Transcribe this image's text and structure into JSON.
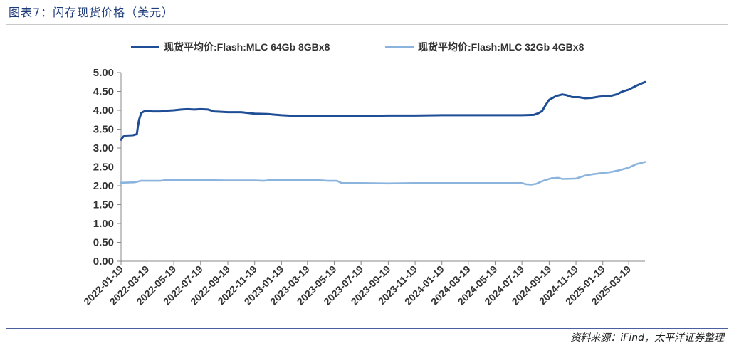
{
  "figure": {
    "title": "图表7：闪存现货价格（美元）",
    "source": "资料来源：iFind，太平洋证券整理"
  },
  "chart_data": {
    "type": "line",
    "title": "",
    "xlabel": "",
    "ylabel": "",
    "ylim": [
      0,
      5
    ],
    "yticks": [
      "0.00",
      "0.50",
      "1.00",
      "1.50",
      "2.00",
      "2.50",
      "3.00",
      "3.50",
      "4.00",
      "4.50",
      "5.00"
    ],
    "xticks": [
      "2022-01-19",
      "2022-03-19",
      "2022-05-19",
      "2022-07-19",
      "2022-09-19",
      "2022-11-19",
      "2023-01-19",
      "2023-03-19",
      "2023-05-19",
      "2023-07-19",
      "2023-09-19",
      "2023-11-19",
      "2024-01-19",
      "2024-03-19",
      "2024-05-19",
      "2024-07-19",
      "2024-09-19",
      "2024-11-19",
      "2025-01-19",
      "2025-03-19"
    ],
    "xrange": [
      "2022-01-19",
      "2025-04-25"
    ],
    "grid": false,
    "legend_position": "top",
    "series": [
      {
        "name": "现货平均价:Flash:MLC 64Gb 8GBx8",
        "color": "#1f4e96",
        "points": [
          [
            "2022-01-19",
            3.22
          ],
          [
            "2022-01-24",
            3.3
          ],
          [
            "2022-01-29",
            3.33
          ],
          [
            "2022-02-15",
            3.34
          ],
          [
            "2022-02-24",
            3.37
          ],
          [
            "2022-02-26",
            3.55
          ],
          [
            "2022-03-01",
            3.75
          ],
          [
            "2022-03-06",
            3.93
          ],
          [
            "2022-03-14",
            3.98
          ],
          [
            "2022-04-01",
            3.97
          ],
          [
            "2022-04-19",
            3.97
          ],
          [
            "2022-05-05",
            3.99
          ],
          [
            "2022-05-19",
            4.0
          ],
          [
            "2022-06-05",
            4.02
          ],
          [
            "2022-06-19",
            4.03
          ],
          [
            "2022-07-05",
            4.02
          ],
          [
            "2022-07-19",
            4.03
          ],
          [
            "2022-08-05",
            4.02
          ],
          [
            "2022-08-19",
            3.97
          ],
          [
            "2022-09-19",
            3.95
          ],
          [
            "2022-10-19",
            3.95
          ],
          [
            "2022-11-19",
            3.91
          ],
          [
            "2022-12-19",
            3.9
          ],
          [
            "2023-01-19",
            3.87
          ],
          [
            "2023-02-19",
            3.85
          ],
          [
            "2023-03-19",
            3.84
          ],
          [
            "2023-05-19",
            3.85
          ],
          [
            "2023-07-19",
            3.85
          ],
          [
            "2023-09-19",
            3.86
          ],
          [
            "2023-11-19",
            3.86
          ],
          [
            "2024-01-19",
            3.87
          ],
          [
            "2024-03-19",
            3.87
          ],
          [
            "2024-05-19",
            3.87
          ],
          [
            "2024-07-19",
            3.87
          ],
          [
            "2024-08-15",
            3.88
          ],
          [
            "2024-08-25",
            3.92
          ],
          [
            "2024-09-03",
            3.98
          ],
          [
            "2024-09-10",
            4.12
          ],
          [
            "2024-09-19",
            4.28
          ],
          [
            "2024-10-05",
            4.38
          ],
          [
            "2024-10-19",
            4.42
          ],
          [
            "2024-10-29",
            4.4
          ],
          [
            "2024-11-10",
            4.35
          ],
          [
            "2024-11-25",
            4.35
          ],
          [
            "2024-12-10",
            4.32
          ],
          [
            "2024-12-25",
            4.33
          ],
          [
            "2025-01-10",
            4.36
          ],
          [
            "2025-01-19",
            4.37
          ],
          [
            "2025-02-05",
            4.38
          ],
          [
            "2025-02-19",
            4.42
          ],
          [
            "2025-03-05",
            4.5
          ],
          [
            "2025-03-19",
            4.55
          ],
          [
            "2025-04-05",
            4.65
          ],
          [
            "2025-04-25",
            4.75
          ]
        ]
      },
      {
        "name": "现货平均价:Flash:MLC 32Gb 4GBx8",
        "color": "#8ab4de",
        "points": [
          [
            "2022-01-19",
            2.08
          ],
          [
            "2022-02-19",
            2.09
          ],
          [
            "2022-03-05",
            2.13
          ],
          [
            "2022-04-19",
            2.13
          ],
          [
            "2022-05-01",
            2.15
          ],
          [
            "2022-07-19",
            2.15
          ],
          [
            "2022-09-19",
            2.14
          ],
          [
            "2022-11-19",
            2.14
          ],
          [
            "2022-12-10",
            2.13
          ],
          [
            "2022-12-25",
            2.15
          ],
          [
            "2023-02-19",
            2.15
          ],
          [
            "2023-04-10",
            2.15
          ],
          [
            "2023-05-05",
            2.13
          ],
          [
            "2023-05-25",
            2.13
          ],
          [
            "2023-06-05",
            2.07
          ],
          [
            "2023-07-19",
            2.07
          ],
          [
            "2023-09-19",
            2.06
          ],
          [
            "2023-11-19",
            2.07
          ],
          [
            "2024-01-19",
            2.07
          ],
          [
            "2024-03-19",
            2.07
          ],
          [
            "2024-05-19",
            2.07
          ],
          [
            "2024-07-19",
            2.07
          ],
          [
            "2024-07-28",
            2.04
          ],
          [
            "2024-08-10",
            2.03
          ],
          [
            "2024-08-20",
            2.05
          ],
          [
            "2024-08-30",
            2.1
          ],
          [
            "2024-09-10",
            2.15
          ],
          [
            "2024-09-25",
            2.2
          ],
          [
            "2024-10-10",
            2.21
          ],
          [
            "2024-10-19",
            2.18
          ],
          [
            "2024-11-19",
            2.19
          ],
          [
            "2024-12-10",
            2.27
          ],
          [
            "2024-12-25",
            2.3
          ],
          [
            "2025-01-19",
            2.34
          ],
          [
            "2025-02-05",
            2.36
          ],
          [
            "2025-02-25",
            2.41
          ],
          [
            "2025-03-19",
            2.48
          ],
          [
            "2025-04-05",
            2.57
          ],
          [
            "2025-04-25",
            2.63
          ]
        ]
      }
    ]
  }
}
